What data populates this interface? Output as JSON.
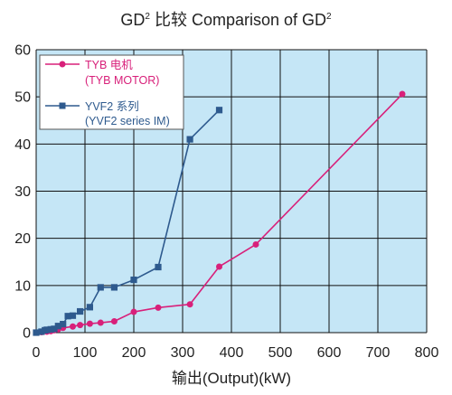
{
  "chart_data": {
    "type": "line",
    "title_main": "GD",
    "title_sup": "2",
    "title_mid": " 比较  Comparison of GD",
    "title_end_sup": "2",
    "xlabel": "输出(Output)(kW)",
    "ylabel": "",
    "xlim": [
      0,
      800
    ],
    "ylim": [
      0,
      60
    ],
    "x_ticks": [
      "0",
      "100",
      "200",
      "300",
      "400",
      "500",
      "600",
      "700",
      "800"
    ],
    "y_ticks": [
      "0",
      "10",
      "20",
      "30",
      "40",
      "50",
      "60"
    ],
    "grid": true,
    "legend_position": "top-left",
    "colors": {
      "background": "#c5e6f6",
      "grid": "#111111"
    },
    "series": [
      {
        "name_line1": "TYB 电机",
        "name_line2": "(TYB MOTOR)",
        "marker": "circle",
        "color": "#d8207a",
        "x": [
          0,
          11,
          22,
          30,
          37,
          45,
          55,
          75,
          90,
          110,
          132,
          160,
          200,
          250,
          315,
          375,
          450,
          750
        ],
        "y": [
          0,
          0.1,
          0.2,
          0.3,
          0.5,
          0.7,
          1.0,
          1.3,
          1.6,
          1.9,
          2.1,
          2.4,
          4.4,
          5.3,
          6.0,
          14.0,
          18.7,
          50.6
        ]
      },
      {
        "name_line1": "YVF2 系列",
        "name_line2": "(YVF2 series IM)",
        "marker": "square",
        "color": "#2e5a8e",
        "x": [
          0,
          11,
          18,
          22,
          30,
          37,
          45,
          55,
          65,
          75,
          90,
          110,
          132,
          160,
          200,
          250,
          315,
          375
        ],
        "y": [
          0,
          0.2,
          0.5,
          0.6,
          0.7,
          0.8,
          1.4,
          1.8,
          3.5,
          3.6,
          4.5,
          5.4,
          9.6,
          9.6,
          11.2,
          13.9,
          41.0,
          47.2
        ]
      }
    ]
  }
}
